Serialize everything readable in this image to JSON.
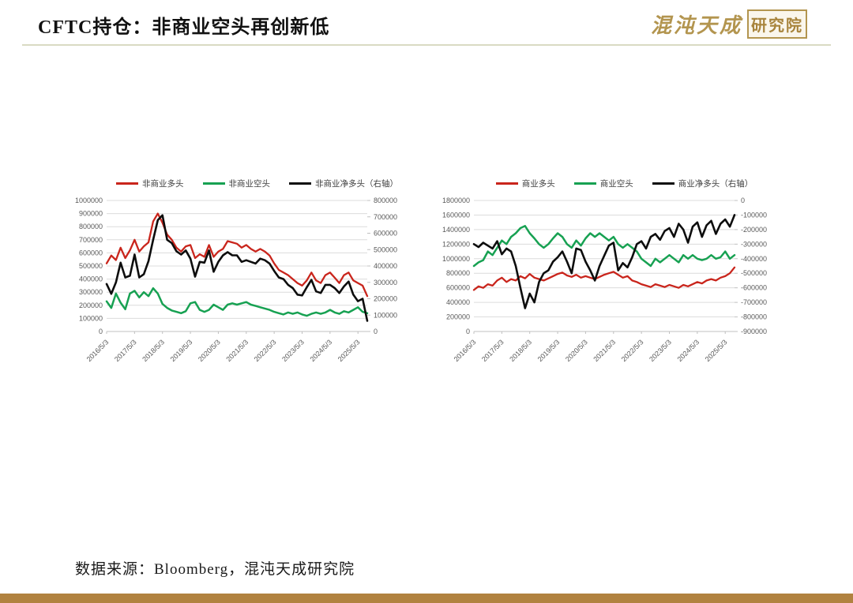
{
  "page": {
    "title": "CFTC持仓：非商业空头再创新低",
    "source_note": "数据来源：Bloomberg，混沌天成研究院"
  },
  "logo": {
    "script_text": "混沌天成",
    "boxed_text": "研究院"
  },
  "colors": {
    "accent_gold": "#b3954f",
    "bottom_bar": "#b18240",
    "header_rule": "#d9dac3",
    "grid": "#dcdcdc",
    "axis_text": "#595959",
    "series_red": "#c9251c",
    "series_green": "#17a152",
    "series_black": "#0d0d0d"
  },
  "chart_data": [
    {
      "type": "line",
      "title": "",
      "legend_position": "top",
      "grid": true,
      "x_months_per_point": 2,
      "x_start": "2016/5/3",
      "x_tick_labels": [
        "2016/5/3",
        "2017/5/3",
        "2018/5/3",
        "2019/5/3",
        "2020/5/3",
        "2021/5/3",
        "2022/5/3",
        "2023/5/3",
        "2024/5/3",
        "2025/5/3"
      ],
      "left_axis": {
        "min": 0,
        "max": 1000000,
        "step": 100000,
        "ticks": [
          "1000000",
          "900000",
          "800000",
          "700000",
          "600000",
          "500000",
          "400000",
          "300000",
          "200000",
          "100000",
          "0"
        ]
      },
      "right_axis": {
        "min": 0,
        "max": 800000,
        "step": 100000,
        "ticks": [
          "800000",
          "700000",
          "600000",
          "500000",
          "400000",
          "300000",
          "200000",
          "100000",
          "0"
        ]
      },
      "series": [
        {
          "name": "非商业多头",
          "color": "#c9251c",
          "axis": "left",
          "stroke_width": 2.3,
          "values": [
            520000,
            580000,
            545000,
            640000,
            560000,
            620000,
            700000,
            610000,
            650000,
            680000,
            840000,
            900000,
            830000,
            740000,
            700000,
            640000,
            610000,
            650000,
            660000,
            560000,
            590000,
            570000,
            660000,
            570000,
            610000,
            630000,
            690000,
            680000,
            670000,
            640000,
            660000,
            630000,
            610000,
            630000,
            610000,
            580000,
            520000,
            470000,
            450000,
            430000,
            400000,
            370000,
            350000,
            390000,
            450000,
            390000,
            370000,
            430000,
            450000,
            410000,
            370000,
            430000,
            450000,
            390000,
            370000,
            350000,
            270000
          ]
        },
        {
          "name": "非商业空头",
          "color": "#17a152",
          "axis": "left",
          "stroke_width": 2.5,
          "values": [
            230000,
            180000,
            290000,
            220000,
            170000,
            290000,
            310000,
            260000,
            300000,
            270000,
            330000,
            290000,
            210000,
            180000,
            160000,
            150000,
            140000,
            155000,
            215000,
            225000,
            165000,
            150000,
            165000,
            205000,
            185000,
            165000,
            205000,
            215000,
            205000,
            215000,
            225000,
            205000,
            195000,
            185000,
            175000,
            165000,
            150000,
            140000,
            130000,
            145000,
            135000,
            145000,
            130000,
            120000,
            135000,
            145000,
            135000,
            145000,
            165000,
            145000,
            135000,
            155000,
            145000,
            165000,
            185000,
            150000,
            140000
          ]
        },
        {
          "name": "非商业净多头（右轴）",
          "color": "#0d0d0d",
          "axis": "right",
          "stroke_width": 2.6,
          "values": [
            290000,
            230000,
            300000,
            420000,
            330000,
            340000,
            470000,
            330000,
            350000,
            430000,
            560000,
            680000,
            710000,
            560000,
            540000,
            490000,
            470000,
            495000,
            445000,
            335000,
            425000,
            420000,
            495000,
            365000,
            425000,
            465000,
            485000,
            465000,
            465000,
            425000,
            435000,
            425000,
            415000,
            445000,
            435000,
            415000,
            370000,
            330000,
            320000,
            285000,
            265000,
            225000,
            220000,
            270000,
            315000,
            245000,
            235000,
            285000,
            285000,
            265000,
            235000,
            275000,
            305000,
            225000,
            185000,
            200000,
            65000
          ]
        }
      ]
    },
    {
      "type": "line",
      "title": "",
      "legend_position": "top",
      "grid": true,
      "x_months_per_point": 2,
      "x_start": "2016/5/3",
      "x_tick_labels": [
        "2016/5/3",
        "2017/5/3",
        "2018/5/3",
        "2019/5/3",
        "2020/5/3",
        "2021/5/3",
        "2022/5/3",
        "2023/5/3",
        "2024/5/3",
        "2025/5/3"
      ],
      "left_axis": {
        "min": 0,
        "max": 1800000,
        "step": 200000,
        "ticks": [
          "1800000",
          "1600000",
          "1400000",
          "1200000",
          "1000000",
          "800000",
          "600000",
          "400000",
          "200000",
          "0"
        ]
      },
      "right_axis": {
        "min": -900000,
        "max": 0,
        "step": 100000,
        "ticks": [
          "0",
          "-100000",
          "-200000",
          "-300000",
          "-400000",
          "-500000",
          "-600000",
          "-700000",
          "-800000",
          "-900000"
        ]
      },
      "series": [
        {
          "name": "商业多头",
          "color": "#c9251c",
          "axis": "left",
          "stroke_width": 2.3,
          "values": [
            570000,
            620000,
            600000,
            650000,
            630000,
            700000,
            740000,
            680000,
            720000,
            700000,
            760000,
            730000,
            790000,
            740000,
            720000,
            700000,
            730000,
            760000,
            790000,
            810000,
            770000,
            750000,
            780000,
            740000,
            760000,
            740000,
            720000,
            750000,
            780000,
            800000,
            820000,
            780000,
            740000,
            760000,
            700000,
            680000,
            650000,
            630000,
            610000,
            650000,
            630000,
            610000,
            640000,
            620000,
            600000,
            640000,
            620000,
            650000,
            680000,
            660000,
            700000,
            720000,
            700000,
            740000,
            760000,
            800000,
            880000
          ]
        },
        {
          "name": "商业空头",
          "color": "#17a152",
          "axis": "left",
          "stroke_width": 2.5,
          "values": [
            900000,
            950000,
            980000,
            1100000,
            1050000,
            1150000,
            1250000,
            1200000,
            1300000,
            1350000,
            1420000,
            1450000,
            1350000,
            1280000,
            1200000,
            1150000,
            1200000,
            1280000,
            1350000,
            1300000,
            1200000,
            1150000,
            1250000,
            1180000,
            1280000,
            1350000,
            1300000,
            1350000,
            1300000,
            1250000,
            1300000,
            1200000,
            1150000,
            1200000,
            1150000,
            1100000,
            1000000,
            950000,
            900000,
            1000000,
            950000,
            1000000,
            1050000,
            1000000,
            950000,
            1050000,
            1000000,
            1050000,
            1000000,
            980000,
            1000000,
            1050000,
            1000000,
            1020000,
            1100000,
            1000000,
            1050000
          ]
        },
        {
          "name": "商业净多头（右轴）",
          "color": "#0d0d0d",
          "axis": "right",
          "stroke_width": 2.6,
          "values": [
            -300000,
            -320000,
            -290000,
            -310000,
            -330000,
            -280000,
            -370000,
            -330000,
            -350000,
            -450000,
            -600000,
            -740000,
            -640000,
            -700000,
            -560000,
            -500000,
            -480000,
            -420000,
            -390000,
            -350000,
            -420000,
            -500000,
            -330000,
            -340000,
            -420000,
            -480000,
            -550000,
            -450000,
            -380000,
            -310000,
            -290000,
            -480000,
            -430000,
            -460000,
            -390000,
            -300000,
            -280000,
            -330000,
            -250000,
            -230000,
            -270000,
            -210000,
            -190000,
            -250000,
            -160000,
            -200000,
            -290000,
            -180000,
            -150000,
            -250000,
            -170000,
            -140000,
            -230000,
            -160000,
            -130000,
            -180000,
            -100000
          ]
        }
      ]
    }
  ]
}
